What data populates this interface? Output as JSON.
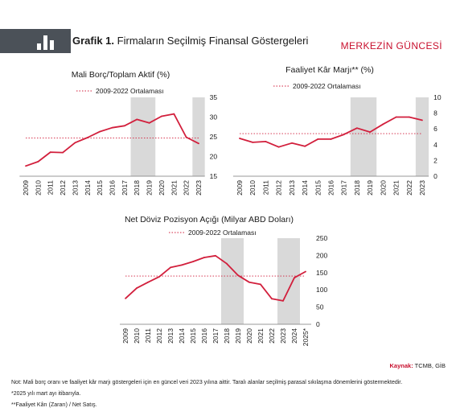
{
  "header": {
    "label": "Grafik 1.",
    "title": "Firmaların Seçilmiş Finansal Göstergeleri",
    "brand": "MERKEZİN GÜNCESİ",
    "icon": "bar-chart-icon"
  },
  "colors": {
    "series": "#d21f3c",
    "band": "#d9d9d9",
    "header": "#4b5158",
    "brand": "#c8102e"
  },
  "chart_data": [
    {
      "type": "line",
      "title": "Mali Borç/Toplam Aktif (%)",
      "legend": "2009-2022 Ortalaması",
      "x": [
        "2009",
        "2010",
        "2011",
        "2012",
        "2013",
        "2014",
        "2015",
        "2016",
        "2017",
        "2018",
        "2019",
        "2020",
        "2021",
        "2022",
        "2023"
      ],
      "series": [
        {
          "values": [
            17.6,
            18.7,
            21.1,
            21.0,
            23.5,
            24.8,
            26.3,
            27.3,
            27.8,
            29.4,
            28.5,
            30.2,
            30.8,
            24.9,
            23.3
          ]
        }
      ],
      "average": 24.7,
      "ylim": [
        15,
        35
      ],
      "yticks": [
        15,
        20,
        25,
        30,
        35
      ],
      "yaxis": "right",
      "shaded": [
        [
          "2018",
          "2019"
        ],
        [
          "2023",
          "2023"
        ]
      ]
    },
    {
      "type": "line",
      "title": "Faaliyet Kâr Marjı** (%)",
      "legend": "2009-2022 Ortalaması",
      "x": [
        "2009",
        "2010",
        "2011",
        "2012",
        "2013",
        "2014",
        "2015",
        "2016",
        "2017",
        "2018",
        "2019",
        "2020",
        "2021",
        "2022",
        "2023"
      ],
      "series": [
        {
          "values": [
            4.8,
            4.3,
            4.4,
            3.7,
            4.2,
            3.8,
            4.7,
            4.7,
            5.3,
            6.1,
            5.6,
            6.6,
            7.5,
            7.5,
            7.1
          ]
        }
      ],
      "average": 5.4,
      "ylim": [
        0,
        10
      ],
      "yticks": [
        0,
        2,
        4,
        6,
        8,
        10
      ],
      "yaxis": "right",
      "shaded": [
        [
          "2018",
          "2019"
        ],
        [
          "2023",
          "2023"
        ]
      ]
    },
    {
      "type": "line",
      "title": "Net Döviz Pozisyon Açığı (Milyar ABD Doları)",
      "legend": "2009-2022 Ortalaması",
      "x": [
        "2009",
        "2010",
        "2011",
        "2012",
        "2013",
        "2014",
        "2015",
        "2016",
        "2017",
        "2018",
        "2019",
        "2020",
        "2021",
        "2022",
        "2023",
        "2024",
        "2025*"
      ],
      "series": [
        {
          "values": [
            75,
            105,
            122,
            138,
            165,
            172,
            182,
            194,
            199,
            176,
            142,
            122,
            116,
            74,
            68,
            135,
            153
          ]
        }
      ],
      "average": 140,
      "ylim": [
        0,
        250
      ],
      "yticks": [
        0,
        50,
        100,
        150,
        200,
        250
      ],
      "yaxis": "right",
      "shaded": [
        [
          "2018",
          "2019"
        ],
        [
          "2023",
          "2024"
        ]
      ]
    }
  ],
  "source": {
    "label": "Kaynak:",
    "text": "TCMB, GİB"
  },
  "notes": [
    "Not: Mali borç oranı ve faaliyet kâr marjı göstergeleri için en güncel veri 2023 yılına aittir. Taralı alanlar seçilmiş parasal sıkılaşma dönemlerini göstermektedir.",
    "*2025 yılı mart ayı itibarıyla.",
    "**Faaliyet Kârı (Zararı) / Net Satış."
  ]
}
